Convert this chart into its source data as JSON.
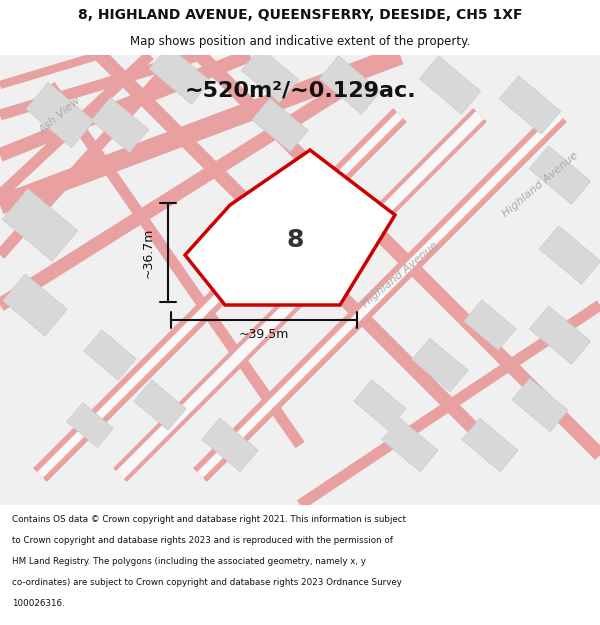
{
  "title": "8, HIGHLAND AVENUE, QUEENSFERRY, DEESIDE, CH5 1XF",
  "subtitle": "Map shows position and indicative extent of the property.",
  "area_label": "~520m²/~0.129ac.",
  "dim_vertical": "~36.7m",
  "dim_horizontal": "~39.5m",
  "property_number": "8",
  "street_label1": "Ash View",
  "street_label2": "Highland Avenue",
  "street_label3": "Highland Avenue",
  "copyright_text": "Contains OS data © Crown copyright and database right 2021. This information is subject to Crown copyright and database rights 2023 and is reproduced with the permission of HM Land Registry. The polygons (including the associated geometry, namely x, y co-ordinates) are subject to Crown copyright and database rights 2023 Ordnance Survey 100026316.",
  "bg_color": "#f5f5f5",
  "map_bg": "#f0f0f0",
  "road_color": "#e8a0a0",
  "building_color": "#d8d8d8",
  "property_color": "#cc0000",
  "dim_line_color": "#111111",
  "title_color": "#111111",
  "header_bg": "#ffffff",
  "footer_bg": "#ffffff"
}
